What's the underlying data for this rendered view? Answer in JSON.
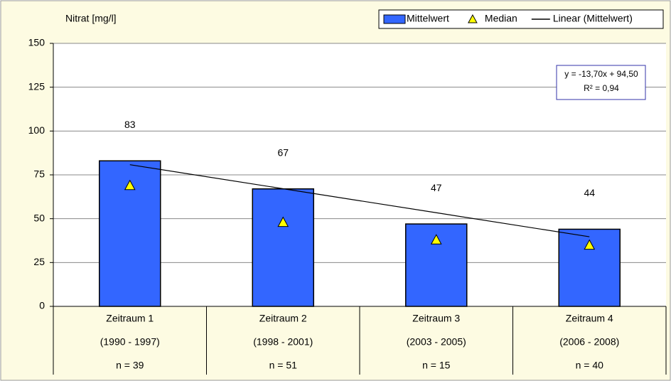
{
  "chart_data": {
    "type": "bar",
    "y_label": "Nitrat [mg/l]",
    "categories": [
      "Zeitraum 1",
      "Zeitraum 2",
      "Zeitraum 3",
      "Zeitraum 4"
    ],
    "category_periods": [
      "(1990 - 1997)",
      "(1998 - 2001)",
      "(2003 - 2005)",
      "(2006 - 2008)"
    ],
    "category_counts": [
      "n = 39",
      "n = 51",
      "n = 15",
      "n = 40"
    ],
    "series": [
      {
        "name": "Mittelwert",
        "kind": "bar",
        "color": "#3366ff",
        "values": [
          83,
          67,
          47,
          44
        ]
      },
      {
        "name": "Median",
        "kind": "triangle",
        "color": "#ffff00",
        "values": [
          69,
          48,
          38,
          35
        ]
      },
      {
        "name": "Linear (Mittelwert)",
        "kind": "line",
        "color": "#000000",
        "values": [
          80.8,
          67.1,
          53.4,
          39.7
        ]
      }
    ],
    "annotation": [
      "y = -13,70x + 94,50",
      "R² = 0,94"
    ],
    "ylim": [
      0,
      150
    ],
    "yticks": [
      0,
      25,
      50,
      75,
      100,
      125,
      150
    ],
    "grid": true,
    "legend": "top-right"
  }
}
